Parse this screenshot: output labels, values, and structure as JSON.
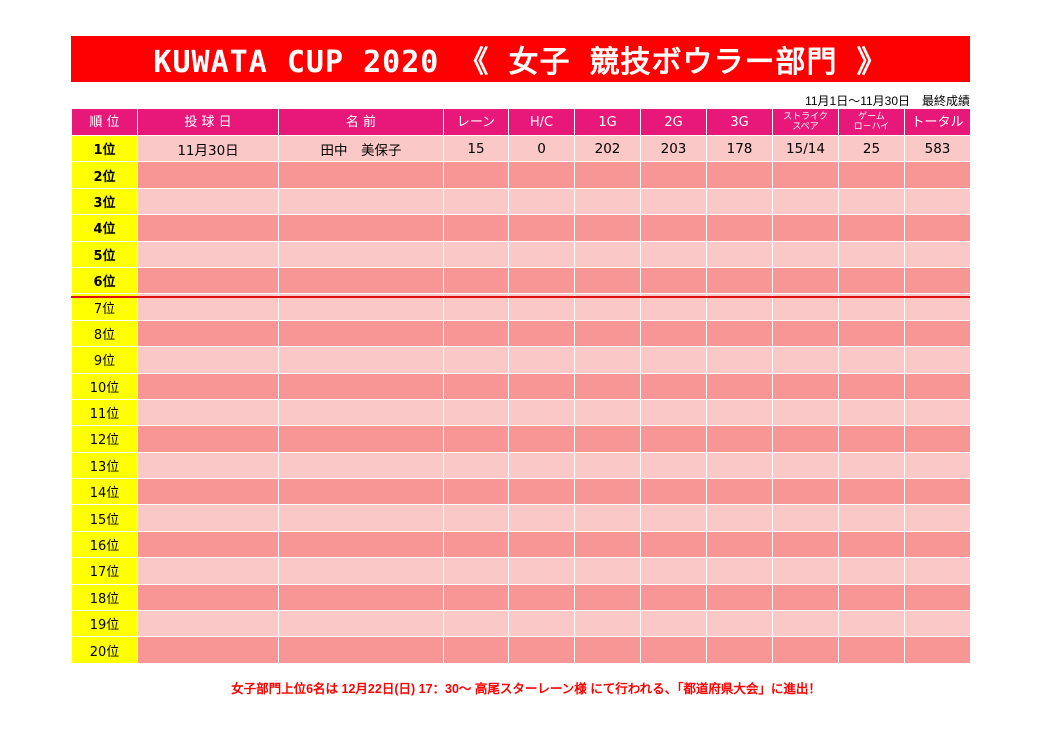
{
  "title": "KUWATA CUP 2020 《 女子 競技ボウラー部門 》",
  "period": "11月1日〜11月30日　最終成績",
  "headers": {
    "rank": "順 位",
    "date": "投 球 日",
    "name": "名 前",
    "lane": "レーン",
    "hc": "H/C",
    "g1": "1G",
    "g2": "2G",
    "g3": "3G",
    "strike_line1": "ストライク",
    "strike_line2": "スペア",
    "game_line1": "ゲーム",
    "game_line2": "ロ－ハイ",
    "total": "トータル"
  },
  "rows": [
    {
      "rank": "1位",
      "date": "11月30日",
      "name": "田中　美保子",
      "lane": "15",
      "hc": "0",
      "g1": "202",
      "g2": "203",
      "g3": "178",
      "strike": "15/14",
      "lowhigh": "25",
      "total": "583"
    },
    {
      "rank": "2位"
    },
    {
      "rank": "3位"
    },
    {
      "rank": "4位"
    },
    {
      "rank": "5位"
    },
    {
      "rank": "6位"
    },
    {
      "rank": "7位"
    },
    {
      "rank": "8位"
    },
    {
      "rank": "9位"
    },
    {
      "rank": "10位"
    },
    {
      "rank": "11位"
    },
    {
      "rank": "12位"
    },
    {
      "rank": "13位"
    },
    {
      "rank": "14位"
    },
    {
      "rank": "15位"
    },
    {
      "rank": "16位"
    },
    {
      "rank": "17位"
    },
    {
      "rank": "18位"
    },
    {
      "rank": "19位"
    },
    {
      "rank": "20位"
    }
  ],
  "footer": "女子部門上位6名は 12月22日(日) 17：30〜 高尾スターレーン様 にて行われる、「都道府県大会」に進出！",
  "colors": {
    "title_bg": "#ff0000",
    "header_bg": "#e8187a",
    "rank_bg": "#ffff00",
    "row_light": "#fbc8c8",
    "row_dark": "#f89595",
    "footer_text": "#ff0000"
  }
}
